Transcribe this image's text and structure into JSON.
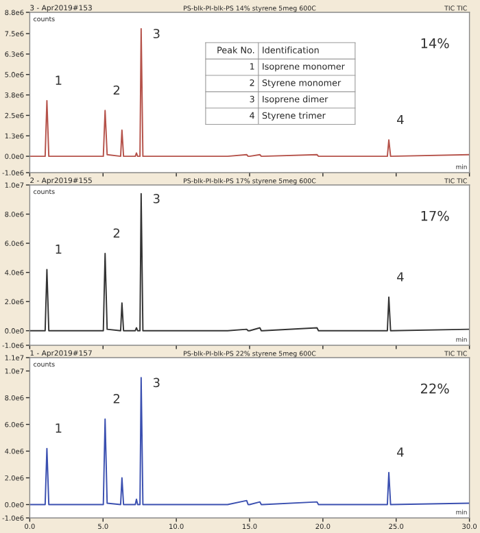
{
  "chart_data": [
    {
      "type": "line",
      "title": "3 - Apr2019#153",
      "subtitle": "PS-blk-PI-blk-PS 14% styrene 5meg 600C",
      "xlabel": "min",
      "ylabel": "counts",
      "xlim": [
        0,
        30
      ],
      "xticks": [
        {
          "value": 0,
          "label": null
        },
        {
          "value": 5,
          "label": null
        },
        {
          "value": 10,
          "label": null
        },
        {
          "value": 15,
          "label": null
        },
        {
          "value": 20,
          "label": null
        },
        {
          "value": 25,
          "label": null
        },
        {
          "value": 30,
          "label": null
        }
      ],
      "ylim": [
        -1000000,
        8800000
      ],
      "yticks": [
        {
          "value": -1000000,
          "label": "-1.0e6"
        },
        {
          "value": 0,
          "label": "0.0e0"
        },
        {
          "value": 1250000,
          "label": "1.3e6"
        },
        {
          "value": 2500000,
          "label": "2.5e6"
        },
        {
          "value": 3750000,
          "label": "3.8e6"
        },
        {
          "value": 5000000,
          "label": "5.0e6"
        },
        {
          "value": 6250000,
          "label": "6.3e6"
        },
        {
          "value": 7500000,
          "label": "7.5e6"
        },
        {
          "value": 8800000,
          "label": "8.8e6"
        }
      ],
      "tick_labels": "y",
      "grid": false,
      "legend": false,
      "series": [
        {
          "color": "#b5524a",
          "x": [
            0,
            1.05,
            1.17,
            1.3,
            3.0,
            5.02,
            5.14,
            5.28,
            6.2,
            6.29,
            6.4,
            7.2,
            7.28,
            7.36,
            7.52,
            7.6,
            7.72,
            13.5,
            14.8,
            14.9,
            15.0,
            15.7,
            15.8,
            15.9,
            19.6,
            19.7,
            19.8,
            24.4,
            24.5,
            24.62,
            30.0
          ],
          "values": [
            0,
            0,
            3400000,
            0,
            0,
            0,
            2800000,
            100000,
            0,
            1600000,
            0,
            0,
            200000,
            0,
            0,
            7800000,
            0,
            0,
            100000,
            0,
            0,
            100000,
            0,
            0,
            100000,
            0,
            0,
            0,
            1000000,
            0,
            100000
          ]
        }
      ],
      "annotations": [
        "TIC TIC",
        "14%",
        "Peak No.",
        "Identification",
        "1",
        "Isoprene monomer",
        "2",
        "Styrene monomer",
        "3",
        "Isoprene dimer",
        "4",
        "Styrene trimer",
        {
          "text": "1",
          "x": 1.17,
          "y": 3400000
        },
        {
          "text": "2",
          "x": 5.14,
          "y": 2800000
        },
        {
          "text": "3",
          "x": 7.6,
          "y": 7800000
        },
        {
          "text": "4",
          "x": 24.5,
          "y": 1000000
        }
      ]
    },
    {
      "type": "line",
      "title": "2 - Apr2019#155",
      "subtitle": "PS-blk-PI-blk-PS 17% styrene 5meg 600C",
      "xlabel": "min",
      "ylabel": "counts",
      "xlim": [
        0,
        30
      ],
      "xticks": [
        {
          "value": 0,
          "label": null
        },
        {
          "value": 5,
          "label": null
        },
        {
          "value": 10,
          "label": null
        },
        {
          "value": 15,
          "label": null
        },
        {
          "value": 20,
          "label": null
        },
        {
          "value": 25,
          "label": null
        },
        {
          "value": 30,
          "label": null
        }
      ],
      "ylim": [
        -1000000,
        10000000
      ],
      "yticks": [
        {
          "value": -1000000,
          "label": "-1.0e6"
        },
        {
          "value": 0,
          "label": "0.0e0"
        },
        {
          "value": 2000000,
          "label": "2.0e6"
        },
        {
          "value": 4000000,
          "label": "4.0e6"
        },
        {
          "value": 6000000,
          "label": "6.0e6"
        },
        {
          "value": 8000000,
          "label": "8.0e6"
        },
        {
          "value": 10000000,
          "label": "1.0e7"
        }
      ],
      "tick_labels": "y",
      "grid": false,
      "legend": false,
      "series": [
        {
          "color": "#333333",
          "x": [
            0,
            1.05,
            1.17,
            1.3,
            3.0,
            5.02,
            5.14,
            5.28,
            6.2,
            6.29,
            6.4,
            7.2,
            7.28,
            7.36,
            7.52,
            7.6,
            7.72,
            13.5,
            14.8,
            14.9,
            15.0,
            15.7,
            15.8,
            15.9,
            19.6,
            19.7,
            19.8,
            24.4,
            24.5,
            24.62,
            30.0
          ],
          "values": [
            0,
            0,
            4200000,
            0,
            0,
            0,
            5300000,
            100000,
            0,
            1900000,
            0,
            0,
            200000,
            0,
            0,
            9400000,
            0,
            0,
            100000,
            0,
            0,
            200000,
            0,
            0,
            200000,
            0,
            0,
            0,
            2300000,
            0,
            100000
          ]
        }
      ],
      "annotations": [
        "TIC TIC",
        "17%",
        {
          "text": "1",
          "x": 1.17,
          "y": 4200000
        },
        {
          "text": "2",
          "x": 5.14,
          "y": 5300000
        },
        {
          "text": "3",
          "x": 7.6,
          "y": 9400000
        },
        {
          "text": "4",
          "x": 24.5,
          "y": 2300000
        }
      ]
    },
    {
      "type": "line",
      "title": "1 - Apr2019#157",
      "subtitle": "PS-blk-PI-blk-PS 22% styrene 5meg 600C",
      "xlabel": "min",
      "ylabel": "counts",
      "xlim": [
        0,
        30
      ],
      "xticks": [
        {
          "value": 0,
          "label": "0.0"
        },
        {
          "value": 5,
          "label": "5.0"
        },
        {
          "value": 10,
          "label": "10.0"
        },
        {
          "value": 15,
          "label": "15.0"
        },
        {
          "value": 20,
          "label": "20.0"
        },
        {
          "value": 25,
          "label": "25.0"
        },
        {
          "value": 30,
          "label": "30.0"
        }
      ],
      "ylim": [
        -1000000,
        11000000
      ],
      "yticks": [
        {
          "value": -1000000,
          "label": "-1.0e6"
        },
        {
          "value": 0,
          "label": "0.0e0"
        },
        {
          "value": 2000000,
          "label": "2.0e6"
        },
        {
          "value": 4000000,
          "label": "4.0e6"
        },
        {
          "value": 6000000,
          "label": "6.0e6"
        },
        {
          "value": 8000000,
          "label": "8.0e6"
        },
        {
          "value": 10000000,
          "label": "1.0e7"
        },
        {
          "value": 11000000,
          "label": "1.1e7"
        }
      ],
      "grid": false,
      "legend": false,
      "series": [
        {
          "color": "#3a4fb0",
          "x": [
            0,
            1.05,
            1.17,
            1.3,
            3.0,
            5.02,
            5.14,
            5.28,
            6.2,
            6.29,
            6.4,
            7.2,
            7.28,
            7.36,
            7.52,
            7.6,
            7.72,
            13.5,
            14.8,
            14.9,
            15.0,
            15.7,
            15.8,
            15.9,
            19.6,
            19.7,
            19.8,
            24.4,
            24.5,
            24.62,
            30.0
          ],
          "values": [
            0,
            0,
            4200000,
            0,
            0,
            0,
            6400000,
            100000,
            0,
            2000000,
            0,
            0,
            400000,
            0,
            0,
            9500000,
            0,
            0,
            300000,
            0,
            0,
            200000,
            0,
            0,
            200000,
            0,
            0,
            0,
            2400000,
            0,
            100000
          ]
        }
      ],
      "annotations": [
        "TIC TIC",
        "22%",
        {
          "text": "1",
          "x": 1.17,
          "y": 4200000
        },
        {
          "text": "2",
          "x": 5.14,
          "y": 6400000
        },
        {
          "text": "3",
          "x": 7.6,
          "y": 9500000
        },
        {
          "text": "4",
          "x": 24.5,
          "y": 2400000
        }
      ]
    }
  ]
}
